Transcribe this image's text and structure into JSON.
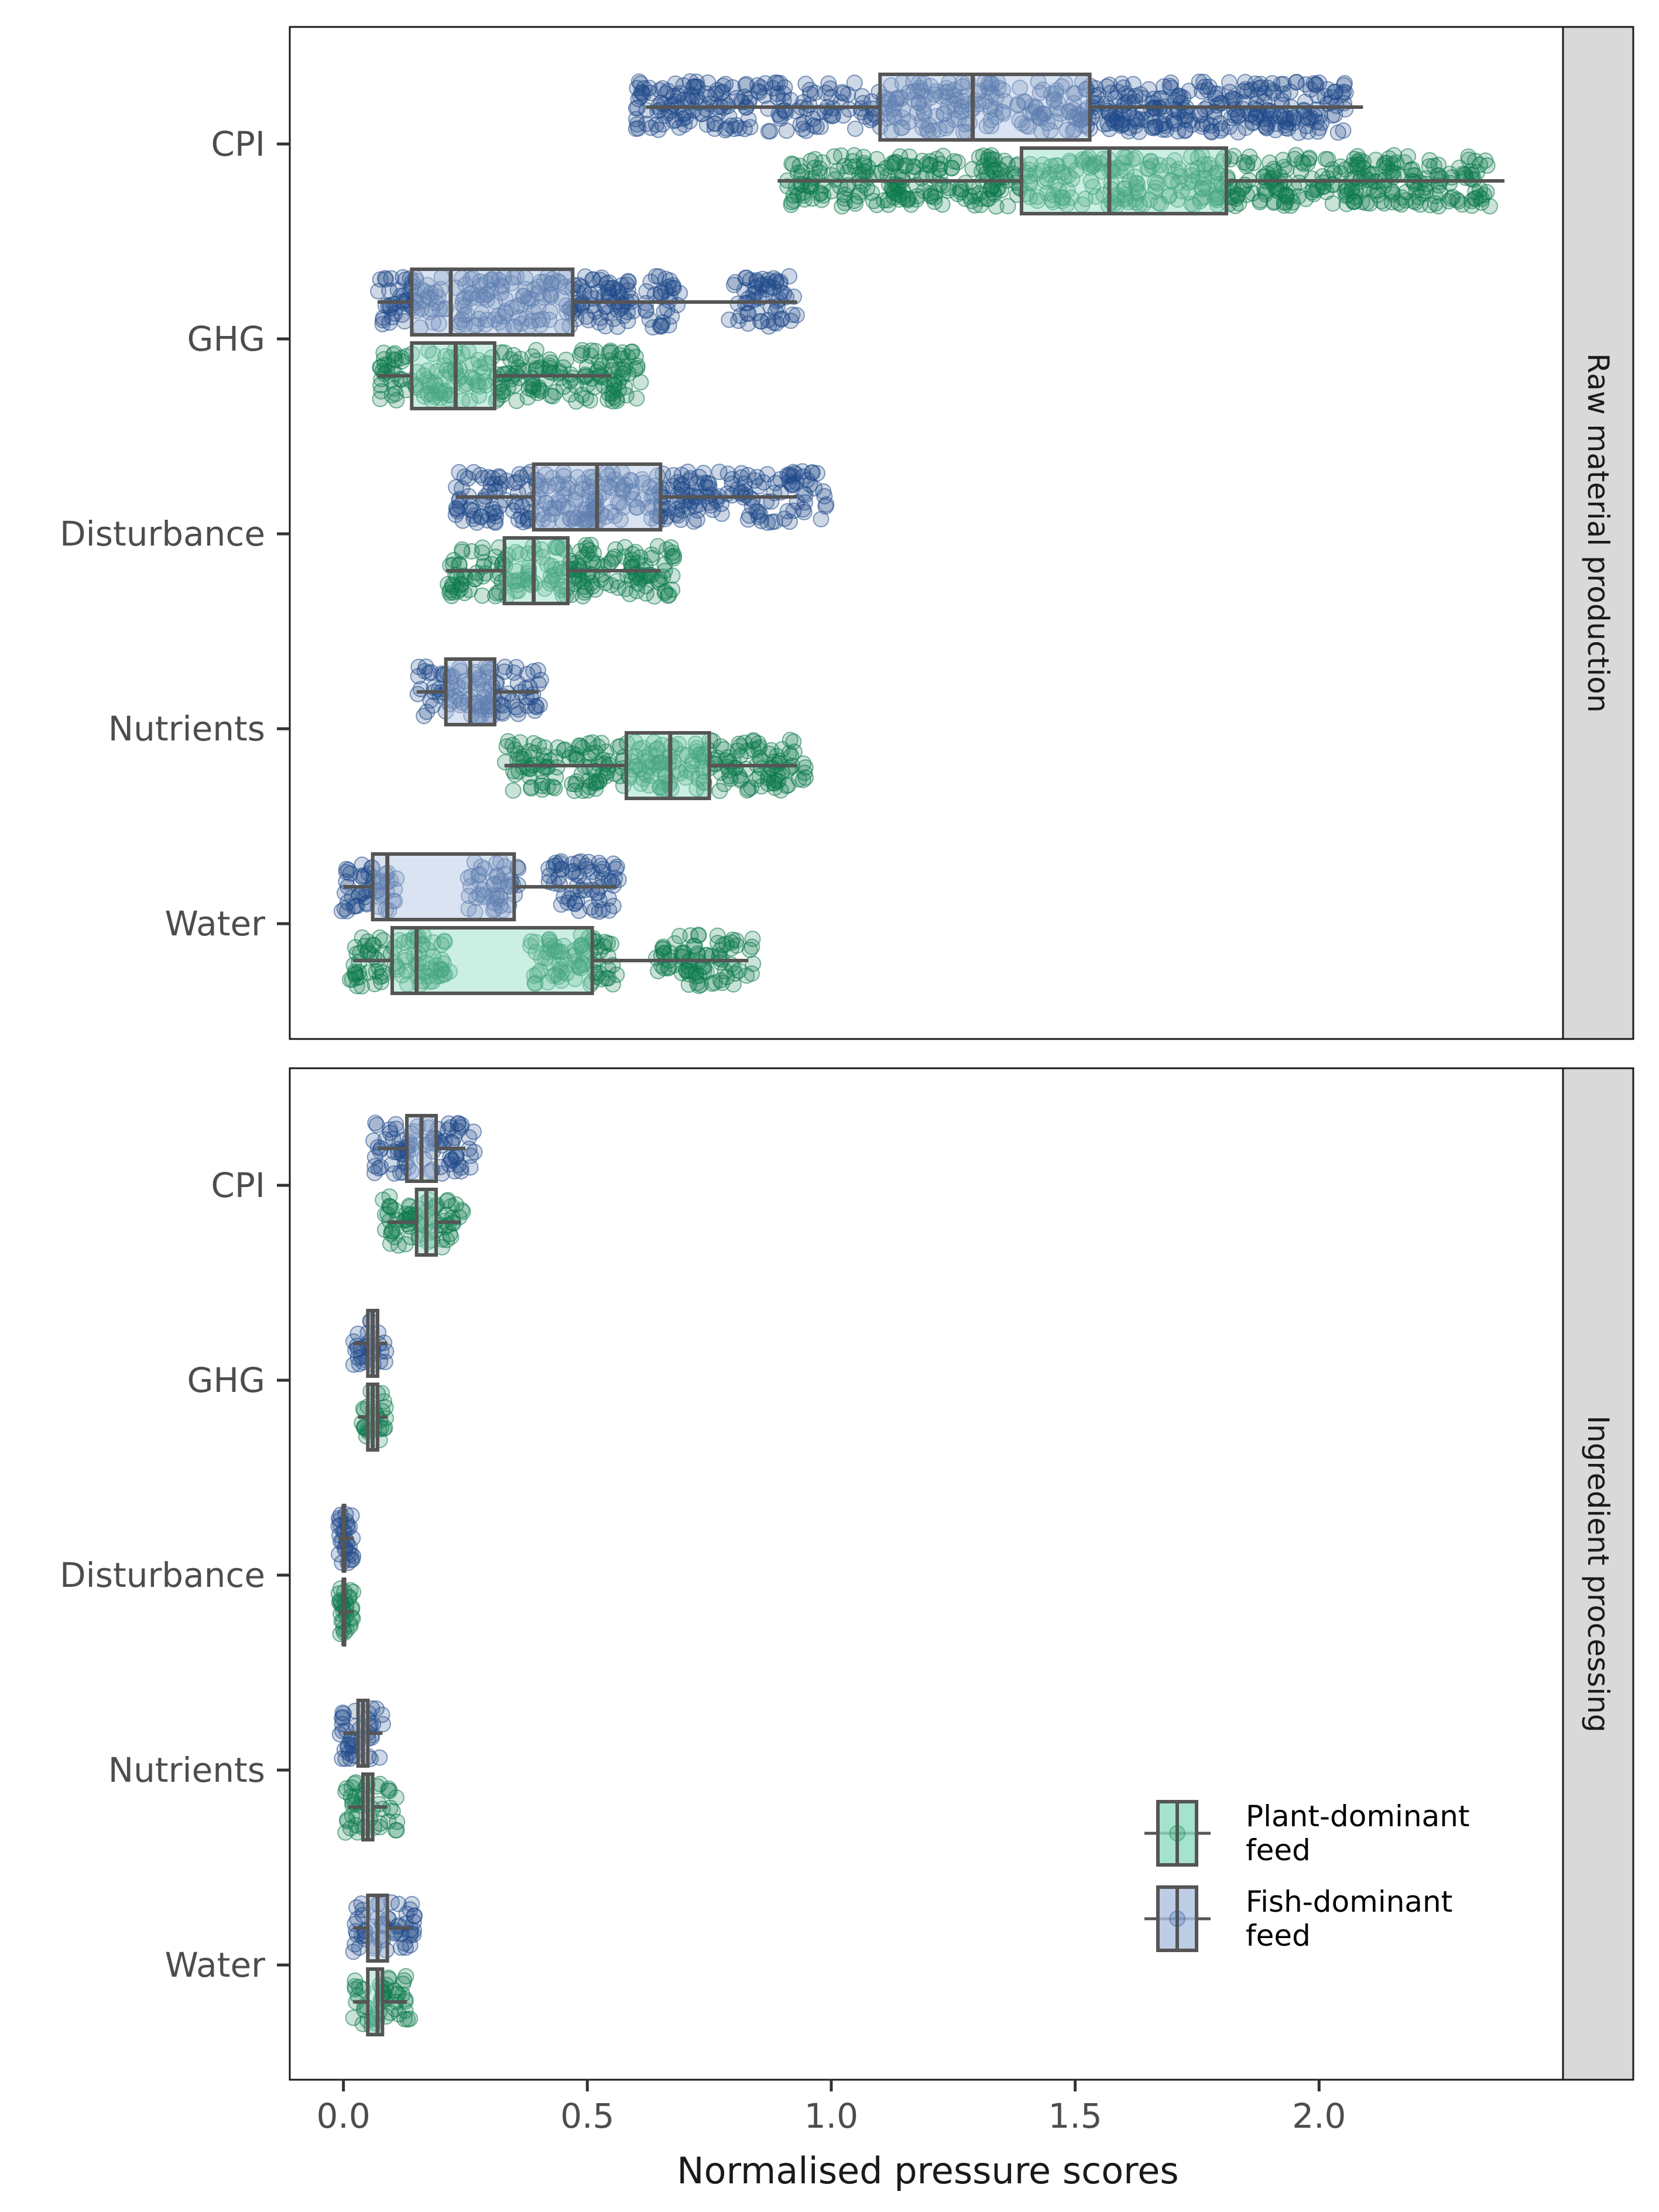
{
  "chart_data": {
    "type": "box",
    "x_label": "Normalised pressure scores",
    "x_ticks": [
      0.0,
      0.5,
      1.0,
      1.5,
      2.0
    ],
    "x_tick_labels": [
      "0.0",
      "0.5",
      "1.0",
      "1.5",
      "2.0"
    ],
    "xlim": [
      -0.11,
      2.5
    ],
    "categories": [
      "CPI",
      "GHG",
      "Disturbance",
      "Nutrients",
      "Water"
    ],
    "legend": [
      {
        "key": "plant",
        "label_lines": [
          "Plant-dominant",
          "feed"
        ]
      },
      {
        "key": "fish",
        "label_lines": [
          "Fish-dominant",
          "feed"
        ]
      }
    ],
    "legend_position": "bottom-right",
    "colors": {
      "fish": {
        "fill": "#aec0e0",
        "point": "#1f4a8a"
      },
      "plant": {
        "fill": "#8fdcc0",
        "point": "#0c7a4c"
      },
      "box_line": "#555555",
      "strip_bg": "#d9d9d9"
    },
    "panels": [
      {
        "strip": "Raw material production",
        "series": [
          {
            "category": "CPI",
            "group": "fish",
            "whisker_low": 0.62,
            "q1": 1.1,
            "median": 1.29,
            "q3": 1.53,
            "whisker_high": 2.09,
            "clusters": [
              [
                0.6,
                2.06
              ]
            ]
          },
          {
            "category": "CPI",
            "group": "plant",
            "whisker_low": 0.89,
            "q1": 1.39,
            "median": 1.57,
            "q3": 1.81,
            "whisker_high": 2.38,
            "clusters": [
              [
                0.91,
                2.35
              ]
            ]
          },
          {
            "category": "GHG",
            "group": "fish",
            "whisker_low": 0.07,
            "q1": 0.14,
            "median": 0.22,
            "q3": 0.47,
            "whisker_high": 0.93,
            "clusters": [
              [
                0.07,
                0.69
              ],
              [
                0.79,
                0.93
              ]
            ]
          },
          {
            "category": "GHG",
            "group": "plant",
            "whisker_low": 0.07,
            "q1": 0.14,
            "median": 0.23,
            "q3": 0.31,
            "whisker_high": 0.55,
            "clusters": [
              [
                0.07,
                0.61
              ]
            ]
          },
          {
            "category": "Disturbance",
            "group": "fish",
            "whisker_low": 0.23,
            "q1": 0.39,
            "median": 0.52,
            "q3": 0.65,
            "whisker_high": 0.93,
            "clusters": [
              [
                0.23,
                0.99
              ]
            ]
          },
          {
            "category": "Disturbance",
            "group": "plant",
            "whisker_low": 0.21,
            "q1": 0.33,
            "median": 0.39,
            "q3": 0.46,
            "whisker_high": 0.65,
            "clusters": [
              [
                0.21,
                0.68
              ]
            ]
          },
          {
            "category": "Nutrients",
            "group": "fish",
            "whisker_low": 0.15,
            "q1": 0.21,
            "median": 0.26,
            "q3": 0.31,
            "whisker_high": 0.4,
            "clusters": [
              [
                0.15,
                0.41
              ]
            ]
          },
          {
            "category": "Nutrients",
            "group": "plant",
            "whisker_low": 0.33,
            "q1": 0.58,
            "median": 0.67,
            "q3": 0.75,
            "whisker_high": 0.93,
            "clusters": [
              [
                0.33,
                0.95
              ]
            ]
          },
          {
            "category": "Water",
            "group": "fish",
            "whisker_low": 0.0,
            "q1": 0.06,
            "median": 0.09,
            "q3": 0.35,
            "whisker_high": 0.56,
            "clusters": [
              [
                -0.01,
                0.11
              ],
              [
                0.25,
                0.36
              ],
              [
                0.42,
                0.57
              ]
            ]
          },
          {
            "category": "Water",
            "group": "plant",
            "whisker_low": 0.02,
            "q1": 0.1,
            "median": 0.15,
            "q3": 0.51,
            "whisker_high": 0.83,
            "clusters": [
              [
                0.01,
                0.22
              ],
              [
                0.38,
                0.56
              ],
              [
                0.64,
                0.84
              ]
            ]
          }
        ]
      },
      {
        "strip": "Ingredient processing",
        "series": [
          {
            "category": "CPI",
            "group": "fish",
            "whisker_low": 0.07,
            "q1": 0.13,
            "median": 0.16,
            "q3": 0.19,
            "whisker_high": 0.25,
            "clusters": [
              [
                0.06,
                0.27
              ]
            ]
          },
          {
            "category": "CPI",
            "group": "plant",
            "whisker_low": 0.09,
            "q1": 0.15,
            "median": 0.17,
            "q3": 0.19,
            "whisker_high": 0.24,
            "clusters": [
              [
                0.08,
                0.25
              ]
            ]
          },
          {
            "category": "GHG",
            "group": "fish",
            "whisker_low": 0.02,
            "q1": 0.05,
            "median": 0.06,
            "q3": 0.07,
            "whisker_high": 0.09,
            "clusters": [
              [
                0.02,
                0.09
              ]
            ]
          },
          {
            "category": "GHG",
            "group": "plant",
            "whisker_low": 0.03,
            "q1": 0.05,
            "median": 0.06,
            "q3": 0.07,
            "whisker_high": 0.09,
            "clusters": [
              [
                0.03,
                0.09
              ]
            ]
          },
          {
            "category": "Disturbance",
            "group": "fish",
            "whisker_low": -0.01,
            "q1": 0.0,
            "median": 0.0,
            "q3": 0.0,
            "whisker_high": 0.02,
            "clusters": [
              [
                -0.01,
                0.02
              ]
            ]
          },
          {
            "category": "Disturbance",
            "group": "plant",
            "whisker_low": -0.01,
            "q1": 0.0,
            "median": 0.0,
            "q3": 0.0,
            "whisker_high": 0.02,
            "clusters": [
              [
                -0.01,
                0.02
              ]
            ]
          },
          {
            "category": "Nutrients",
            "group": "fish",
            "whisker_low": 0.0,
            "q1": 0.03,
            "median": 0.04,
            "q3": 0.05,
            "whisker_high": 0.08,
            "clusters": [
              [
                -0.01,
                0.09
              ]
            ]
          },
          {
            "category": "Nutrients",
            "group": "plant",
            "whisker_low": 0.01,
            "q1": 0.04,
            "median": 0.05,
            "q3": 0.06,
            "whisker_high": 0.09,
            "clusters": [
              [
                0.0,
                0.11
              ]
            ]
          },
          {
            "category": "Water",
            "group": "fish",
            "whisker_low": 0.02,
            "q1": 0.05,
            "median": 0.07,
            "q3": 0.09,
            "whisker_high": 0.14,
            "clusters": [
              [
                0.02,
                0.15
              ]
            ]
          },
          {
            "category": "Water",
            "group": "plant",
            "whisker_low": 0.02,
            "q1": 0.05,
            "median": 0.07,
            "q3": 0.08,
            "whisker_high": 0.13,
            "clusters": [
              [
                0.02,
                0.14
              ]
            ]
          }
        ]
      }
    ]
  }
}
